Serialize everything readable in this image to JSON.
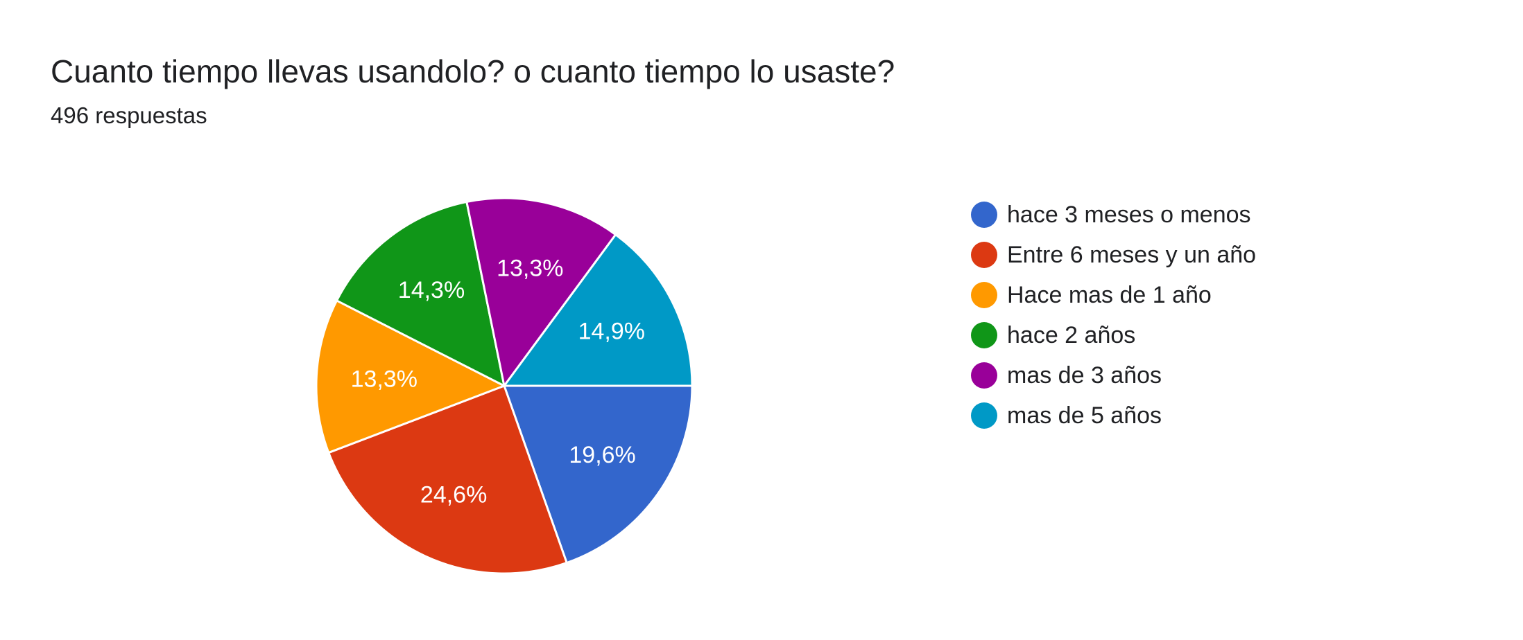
{
  "chart_data": {
    "type": "pie",
    "title": "Cuanto tiempo llevas usandolo? o cuanto tiempo lo usaste?",
    "subtitle": "496 respuestas",
    "legend_position": "right",
    "categories": [
      "hace 3 meses o menos",
      "Entre 6 meses y un año",
      "Hace mas de 1 año",
      "hace 2 años",
      "mas de 3 años",
      "mas de 5 años"
    ],
    "values": [
      19.6,
      24.6,
      13.3,
      14.3,
      13.3,
      14.9
    ],
    "labels": [
      "19,6%",
      "24,6%",
      "13,3%",
      "14,3%",
      "13,3%",
      "14,9%"
    ],
    "colors": [
      "#3366cc",
      "#dc3912",
      "#ff9900",
      "#109618",
      "#990099",
      "#0099c6"
    ]
  }
}
